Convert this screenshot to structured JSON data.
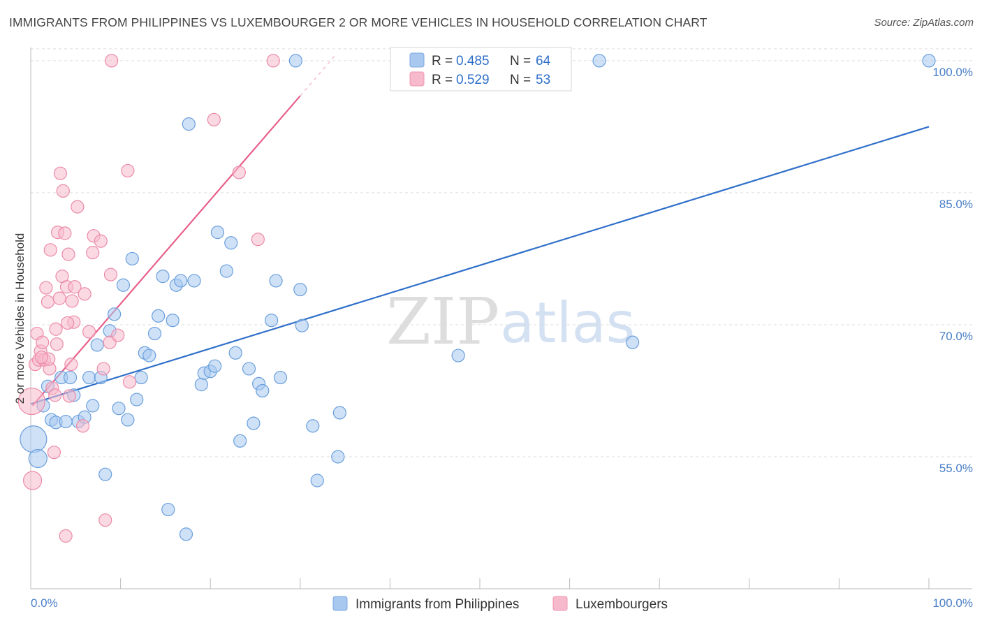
{
  "header": {
    "title": "IMMIGRANTS FROM PHILIPPINES VS LUXEMBOURGER 2 OR MORE VEHICLES IN HOUSEHOLD CORRELATION CHART",
    "source": "Source: ZipAtlas.com"
  },
  "watermark": {
    "part1": "ZIP",
    "part2": "atlas"
  },
  "legend_top": {
    "rows": [
      {
        "r_label": "R =",
        "r_value": "0.485",
        "n_label": "N =",
        "n_value": "64",
        "color": "#a8c8f0"
      },
      {
        "r_label": "R =",
        "r_value": "0.529",
        "n_label": "N =",
        "n_value": "53",
        "color": "#f7b9cc"
      }
    ]
  },
  "legend_bottom": {
    "items": [
      {
        "label": "Immigrants from Philippines",
        "color": "#a8c8f0"
      },
      {
        "label": "Luxembourgers",
        "color": "#f7b9cc"
      }
    ]
  },
  "chart_data": {
    "type": "scatter",
    "title": "IMMIGRANTS FROM PHILIPPINES VS LUXEMBOURGER 2 OR MORE VEHICLES IN HOUSEHOLD CORRELATION CHART",
    "xlabel": "",
    "ylabel": "2 or more Vehicles in Household",
    "xlim": [
      0,
      100
    ],
    "ylim": [
      40,
      101.5
    ],
    "x_tick_labels": [
      "0.0%",
      "100.0%"
    ],
    "y_ticks": [
      55,
      70,
      85,
      100
    ],
    "y_tick_labels": [
      "55.0%",
      "70.0%",
      "85.0%",
      "100.0%"
    ],
    "grid": true,
    "legend_position": "top-center",
    "series": [
      {
        "name": "Immigrants from Philippines",
        "color": "#a8c8f0",
        "stroke": "#6a9fdc",
        "trend": {
          "x": [
            0,
            100
          ],
          "y": [
            61.0,
            92.5
          ],
          "color": "#2f6fc9"
        },
        "points": [
          [
            0.3,
            57.0
          ],
          [
            0.8,
            54.8
          ],
          [
            1.4,
            60.8
          ],
          [
            1.9,
            63.0
          ],
          [
            2.3,
            59.2
          ],
          [
            2.8,
            58.9
          ],
          [
            3.4,
            64.0
          ],
          [
            3.9,
            59.0
          ],
          [
            4.4,
            64.0
          ],
          [
            4.8,
            62.0
          ],
          [
            5.3,
            59.0
          ],
          [
            6.0,
            59.5
          ],
          [
            6.5,
            64.0
          ],
          [
            6.9,
            60.8
          ],
          [
            7.4,
            67.7
          ],
          [
            7.8,
            64.0
          ],
          [
            8.3,
            53.0
          ],
          [
            8.8,
            69.3
          ],
          [
            9.3,
            71.2
          ],
          [
            9.8,
            60.5
          ],
          [
            10.3,
            74.5
          ],
          [
            10.8,
            59.2
          ],
          [
            11.3,
            77.5
          ],
          [
            11.8,
            61.5
          ],
          [
            12.3,
            64.0
          ],
          [
            12.7,
            66.8
          ],
          [
            13.2,
            66.5
          ],
          [
            13.8,
            69.0
          ],
          [
            14.2,
            71.0
          ],
          [
            14.7,
            75.5
          ],
          [
            15.3,
            49.0
          ],
          [
            15.8,
            70.5
          ],
          [
            16.2,
            74.5
          ],
          [
            16.7,
            75.0
          ],
          [
            17.3,
            46.2
          ],
          [
            17.6,
            92.8
          ],
          [
            18.2,
            75.0
          ],
          [
            19.0,
            63.2
          ],
          [
            19.3,
            64.5
          ],
          [
            20.0,
            64.7
          ],
          [
            20.5,
            65.3
          ],
          [
            20.8,
            80.5
          ],
          [
            21.8,
            76.1
          ],
          [
            22.3,
            79.3
          ],
          [
            22.8,
            66.8
          ],
          [
            23.3,
            56.8
          ],
          [
            24.3,
            65.0
          ],
          [
            24.8,
            58.8
          ],
          [
            25.4,
            63.3
          ],
          [
            25.8,
            62.5
          ],
          [
            26.8,
            70.5
          ],
          [
            27.3,
            75.0
          ],
          [
            27.8,
            64.0
          ],
          [
            29.5,
            100.0
          ],
          [
            30.0,
            74.0
          ],
          [
            30.2,
            69.9
          ],
          [
            31.4,
            58.5
          ],
          [
            31.9,
            52.3
          ],
          [
            34.2,
            55.0
          ],
          [
            34.4,
            60.0
          ],
          [
            47.6,
            66.5
          ],
          [
            63.3,
            100.0
          ],
          [
            67.0,
            68.0
          ],
          [
            100.0,
            100.0
          ]
        ]
      },
      {
        "name": "Luxembourgers",
        "color": "#f7b9cc",
        "stroke": "#ec8aa8",
        "trend": {
          "x": [
            0.2,
            30.0
          ],
          "y": [
            60.8,
            96.0
          ],
          "color": "#e8608a"
        },
        "points": [
          [
            0.1,
            61.3
          ],
          [
            0.2,
            52.3
          ],
          [
            0.5,
            65.5
          ],
          [
            0.7,
            69.0
          ],
          [
            0.9,
            66.0
          ],
          [
            1.1,
            67.0
          ],
          [
            1.3,
            68.0
          ],
          [
            1.5,
            66.0
          ],
          [
            1.7,
            74.2
          ],
          [
            1.9,
            72.6
          ],
          [
            2.1,
            65.0
          ],
          [
            2.2,
            78.5
          ],
          [
            2.4,
            62.8
          ],
          [
            2.6,
            55.5
          ],
          [
            2.8,
            69.5
          ],
          [
            2.9,
            67.8
          ],
          [
            3.0,
            80.5
          ],
          [
            3.2,
            73.0
          ],
          [
            3.3,
            87.2
          ],
          [
            3.5,
            75.5
          ],
          [
            3.6,
            85.2
          ],
          [
            3.8,
            80.4
          ],
          [
            3.9,
            46.0
          ],
          [
            4.0,
            74.3
          ],
          [
            4.2,
            78.0
          ],
          [
            4.3,
            61.9
          ],
          [
            4.5,
            65.5
          ],
          [
            4.6,
            72.7
          ],
          [
            4.8,
            70.3
          ],
          [
            4.9,
            74.3
          ],
          [
            5.2,
            83.4
          ],
          [
            5.8,
            58.5
          ],
          [
            6.0,
            73.5
          ],
          [
            6.5,
            69.2
          ],
          [
            6.9,
            78.2
          ],
          [
            7.0,
            80.1
          ],
          [
            7.8,
            79.5
          ],
          [
            8.1,
            65.0
          ],
          [
            8.3,
            47.8
          ],
          [
            8.8,
            68.0
          ],
          [
            8.9,
            75.7
          ],
          [
            9.0,
            100.0
          ],
          [
            9.7,
            68.8
          ],
          [
            10.8,
            87.5
          ],
          [
            11.0,
            63.5
          ],
          [
            20.4,
            93.3
          ],
          [
            23.2,
            87.3
          ],
          [
            25.3,
            79.7
          ],
          [
            27.0,
            100.0
          ],
          [
            2.0,
            66.1
          ],
          [
            1.2,
            66.3
          ],
          [
            2.7,
            62.0
          ],
          [
            4.1,
            70.2
          ]
        ]
      }
    ]
  }
}
